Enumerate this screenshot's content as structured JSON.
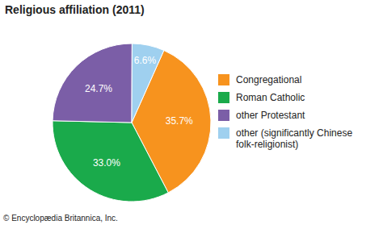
{
  "chart_data": {
    "type": "pie",
    "title": "Religious affiliation (2011)",
    "categories": [
      "Congregational",
      "Roman Catholic",
      "other Protestant",
      "other (significantly Chinese folk-religionist)"
    ],
    "values": [
      35.7,
      33.0,
      24.7,
      6.6
    ],
    "value_labels": [
      "35.7%",
      "33.0%",
      "24.7%",
      "6.6%"
    ],
    "colors": [
      "#f7931e",
      "#1aaa4b",
      "#7b5ea7",
      "#9fd0ef"
    ],
    "data_labels": true,
    "legend": "right",
    "source": "© Encyclopædia Britannica, Inc."
  }
}
